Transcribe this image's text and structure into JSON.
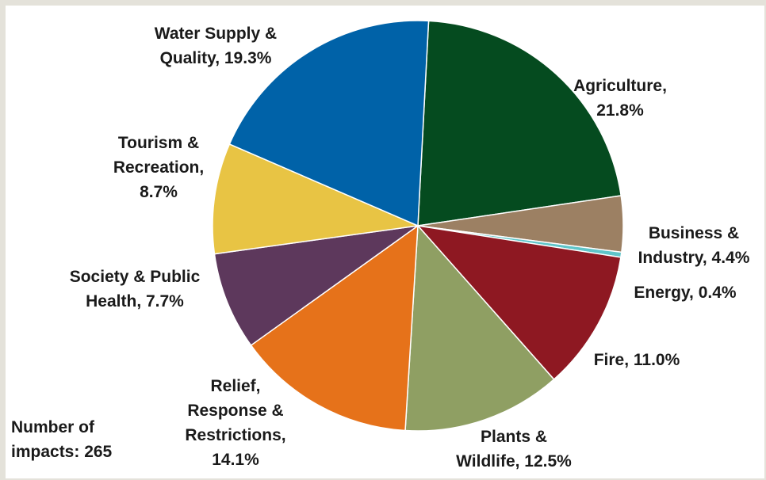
{
  "chart_data": {
    "type": "pie",
    "slices": [
      {
        "label_lines": [
          "Agriculture,",
          "21.8%"
        ],
        "value": 21.8,
        "color": "#054b1f"
      },
      {
        "label_lines": [
          "Business &",
          "Industry, 4.4%"
        ],
        "value": 4.4,
        "color": "#9c8063"
      },
      {
        "label_lines": [
          "Energy, 0.4%"
        ],
        "value": 0.4,
        "color": "#5fc4c9"
      },
      {
        "label_lines": [
          "Fire, 11.0%"
        ],
        "value": 11.0,
        "color": "#8e1822"
      },
      {
        "label_lines": [
          "Plants &",
          "Wildlife, 12.5%"
        ],
        "value": 12.5,
        "color": "#8f9f63"
      },
      {
        "label_lines": [
          "Relief,",
          "Response &",
          "Restrictions,",
          "14.1%"
        ],
        "value": 14.1,
        "color": "#e6721a"
      },
      {
        "label_lines": [
          "Society & Public",
          "Health, 7.7%"
        ],
        "value": 7.7,
        "color": "#5d385c"
      },
      {
        "label_lines": [
          "Tourism &",
          "Recreation,",
          "8.7%"
        ],
        "value": 8.7,
        "color": "#e8c444"
      },
      {
        "label_lines": [
          "Water Supply &",
          "Quality, 19.3%"
        ],
        "value": 19.3,
        "color": "#0062a8"
      }
    ],
    "annotation_lines": [
      "Number of",
      "impacts: 265"
    ],
    "start": "top, clockwise",
    "legend": "none"
  }
}
